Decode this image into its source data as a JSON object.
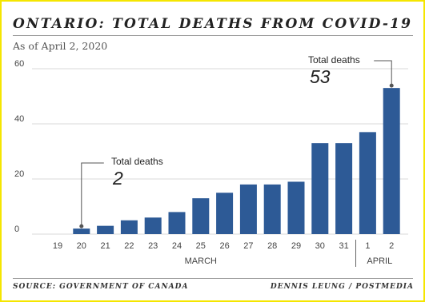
{
  "header": {
    "title": "ONTARIO: TOTAL DEATHS FROM COVID-19",
    "subtitle": "As of April 2, 2020"
  },
  "footer": {
    "source": "SOURCE: GOVERNMENT OF CANADA",
    "credit": "DENNIS LEUNG / POSTMEDIA"
  },
  "colors": {
    "bar": "#2d5a96",
    "gridline": "#d9d9d9",
    "callout_line": "#555555",
    "frame": "#f5e600"
  },
  "chart_data": {
    "type": "bar",
    "categories": [
      "19",
      "20",
      "21",
      "22",
      "23",
      "24",
      "25",
      "26",
      "27",
      "28",
      "29",
      "30",
      "31",
      "1",
      "2"
    ],
    "values": [
      0,
      2,
      3,
      5,
      6,
      8,
      13,
      15,
      18,
      18,
      19,
      33,
      33,
      37,
      53
    ],
    "month_groups": [
      {
        "label": "MARCH",
        "from": 0,
        "to": 12
      },
      {
        "label": "APRIL",
        "from": 13,
        "to": 14
      }
    ],
    "yticks": [
      0,
      20,
      40,
      60
    ],
    "ylim": [
      0,
      60
    ],
    "grid": true,
    "annotations": [
      {
        "category_index": 1,
        "label": "Total deaths",
        "value": "2"
      },
      {
        "category_index": 14,
        "label": "Total deaths",
        "value": "53"
      }
    ]
  }
}
